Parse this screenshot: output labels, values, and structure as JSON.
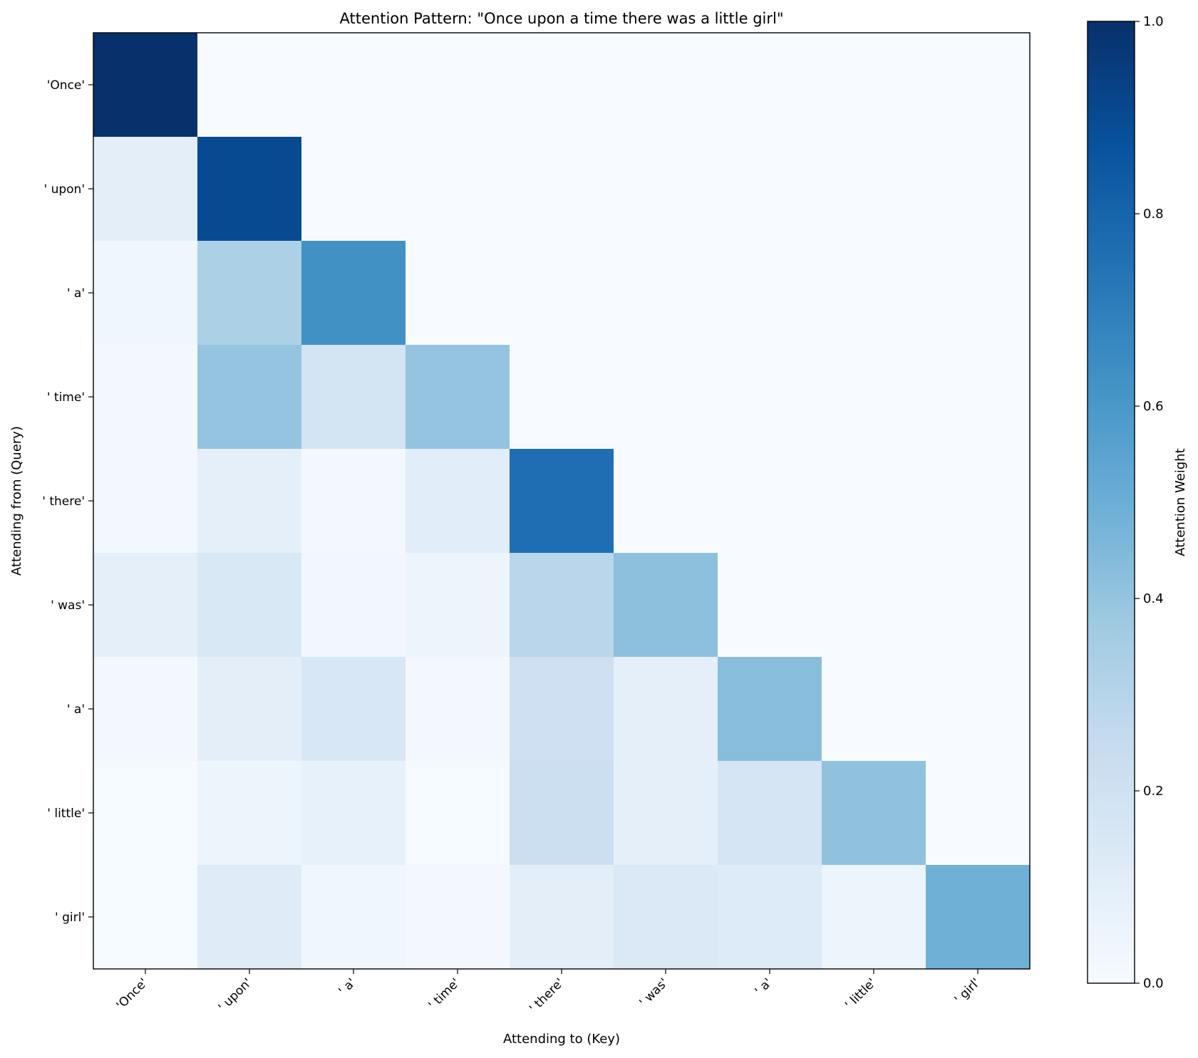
{
  "chart_data": {
    "type": "heatmap",
    "title": "Attention Pattern: \"Once upon a time there was a little girl\"",
    "xlabel": "Attending to (Key)",
    "ylabel": "Attending from (Query)",
    "x_categories": [
      "'Once'",
      "' upon'",
      "' a'",
      "' time'",
      "' there'",
      "' was'",
      "' a'",
      "' little'",
      "' girl'"
    ],
    "y_categories": [
      "'Once'",
      "' upon'",
      "' a'",
      "' time'",
      "' there'",
      "' was'",
      "' a'",
      "' little'",
      "' girl'"
    ],
    "values": [
      [
        1.0,
        0.0,
        0.0,
        0.0,
        0.0,
        0.0,
        0.0,
        0.0,
        0.0
      ],
      [
        0.1,
        0.9,
        0.0,
        0.0,
        0.0,
        0.0,
        0.0,
        0.0,
        0.0
      ],
      [
        0.04,
        0.33,
        0.63,
        0.0,
        0.0,
        0.0,
        0.0,
        0.0,
        0.0
      ],
      [
        0.02,
        0.4,
        0.18,
        0.4,
        0.0,
        0.0,
        0.0,
        0.0,
        0.0
      ],
      [
        0.02,
        0.09,
        0.02,
        0.11,
        0.76,
        0.0,
        0.0,
        0.0,
        0.0
      ],
      [
        0.09,
        0.15,
        0.03,
        0.05,
        0.29,
        0.42,
        0.0,
        0.0,
        0.0
      ],
      [
        0.02,
        0.1,
        0.16,
        0.02,
        0.21,
        0.09,
        0.43,
        0.0,
        0.0
      ],
      [
        0.01,
        0.05,
        0.08,
        0.01,
        0.22,
        0.09,
        0.17,
        0.41,
        0.0
      ],
      [
        0.01,
        0.12,
        0.04,
        0.02,
        0.1,
        0.14,
        0.13,
        0.05,
        0.49
      ]
    ],
    "colormap": "Blues",
    "colorbar": {
      "label": "Attention Weight",
      "range": [
        0,
        1
      ],
      "ticks": [
        0.0,
        0.2,
        0.4,
        0.6,
        0.8,
        1.0
      ],
      "tick_labels": [
        "0.0",
        "0.2",
        "0.4",
        "0.6",
        "0.8",
        "1.0"
      ],
      "position": "right"
    },
    "grid": false
  }
}
